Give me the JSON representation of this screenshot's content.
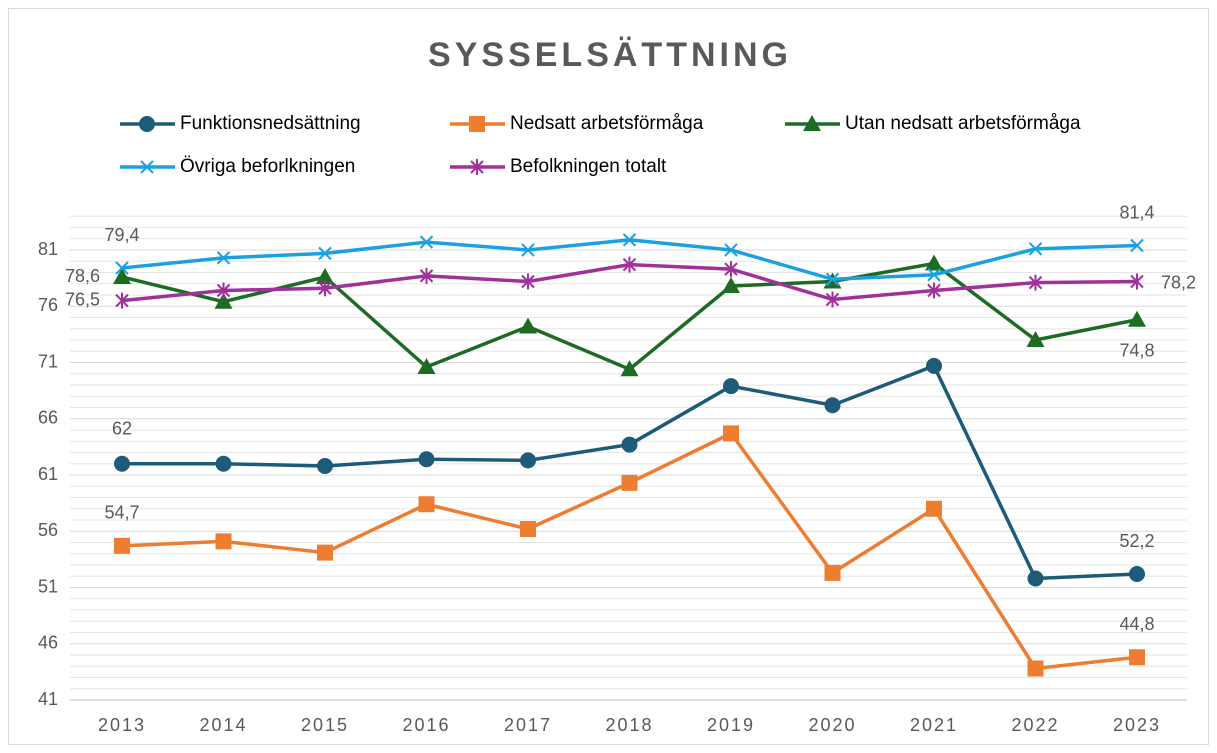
{
  "chart_data": {
    "type": "line",
    "title": "SYSSELSÄTTNING",
    "categories": [
      "2013",
      "2014",
      "2015",
      "2016",
      "2017",
      "2018",
      "2019",
      "2020",
      "2021",
      "2022",
      "2023"
    ],
    "series": [
      {
        "name": "Funktionsnedsättning",
        "color": "#1d5b79",
        "marker": "circle",
        "values": [
          62,
          62,
          61.8,
          62.4,
          62.3,
          63.7,
          68.9,
          67.2,
          70.7,
          51.8,
          52.2
        ],
        "value_labels": [
          "62",
          null,
          null,
          null,
          null,
          null,
          null,
          null,
          null,
          null,
          "52,2"
        ]
      },
      {
        "name": "Nedsatt arbetsförmåga",
        "color": "#ed7d31",
        "marker": "square",
        "values": [
          54.7,
          55.1,
          54.1,
          58.4,
          56.2,
          60.3,
          64.7,
          52.3,
          58,
          43.8,
          44.8
        ],
        "value_labels": [
          "54,7",
          null,
          null,
          null,
          null,
          null,
          null,
          null,
          null,
          null,
          "44,8"
        ]
      },
      {
        "name": "Utan nedsatt arbetsförmåga",
        "color": "#1e6b24",
        "marker": "triangle",
        "values": [
          78.6,
          76.4,
          78.6,
          70.6,
          74.2,
          70.4,
          77.8,
          78.2,
          79.8,
          73,
          74.8
        ],
        "value_labels": [
          "78,6",
          null,
          null,
          null,
          null,
          null,
          null,
          null,
          null,
          null,
          "74,8"
        ]
      },
      {
        "name": "Övriga beforlkningen",
        "color": "#1ba1e2",
        "marker": "x",
        "values": [
          79.4,
          80.3,
          80.7,
          81.7,
          81,
          81.9,
          81,
          78.4,
          78.8,
          81.1,
          81.4
        ],
        "value_labels": [
          "79,4",
          null,
          null,
          null,
          null,
          null,
          null,
          null,
          null,
          null,
          "81,4"
        ]
      },
      {
        "name": "Befolkningen totalt",
        "color": "#a0309a",
        "marker": "star",
        "values": [
          76.5,
          77.4,
          77.6,
          78.7,
          78.2,
          79.7,
          79.3,
          76.6,
          77.4,
          78.1,
          78.2
        ],
        "value_labels": [
          "76,5",
          null,
          null,
          null,
          null,
          null,
          null,
          null,
          null,
          null,
          "78,2"
        ]
      }
    ],
    "ylim": [
      41,
      84
    ],
    "yticks": [
      41,
      46,
      51,
      56,
      61,
      66,
      71,
      76,
      81
    ],
    "minor_yticks": [
      42,
      43,
      44,
      45,
      47,
      48,
      49,
      50,
      52,
      53,
      54,
      55,
      57,
      58,
      59,
      60,
      62,
      63,
      64,
      65,
      67,
      68,
      69,
      70,
      72,
      73,
      74,
      75,
      77,
      78,
      79,
      80,
      82,
      83,
      84
    ],
    "grid": true,
    "legend": "top"
  }
}
